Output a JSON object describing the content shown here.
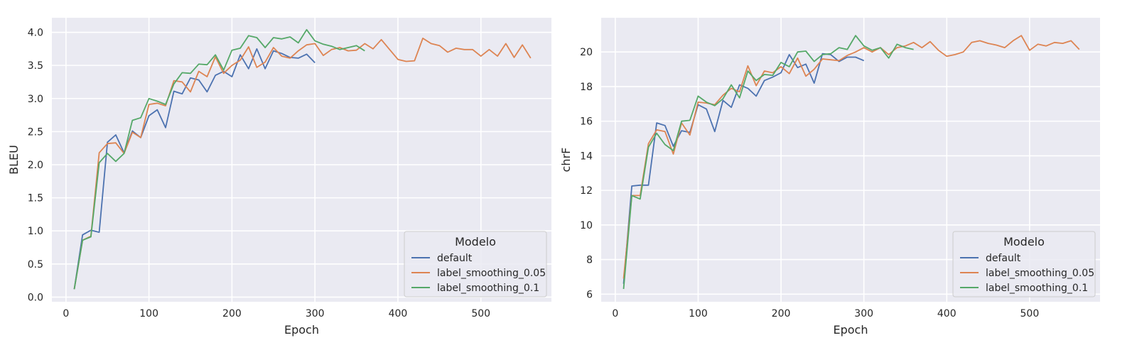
{
  "chart_data": [
    {
      "type": "line",
      "xlabel": "Epoch",
      "ylabel": "BLEU",
      "xlim": [
        -17,
        585
      ],
      "ylim": [
        -0.07,
        4.22
      ],
      "xticks": [
        0,
        100,
        200,
        300,
        400,
        500
      ],
      "yticks": [
        0.0,
        0.5,
        1.0,
        1.5,
        2.0,
        2.5,
        3.0,
        3.5,
        4.0
      ],
      "ytick_labels": [
        "0.0",
        "0.5",
        "1.0",
        "1.5",
        "2.0",
        "2.5",
        "3.0",
        "3.5",
        "4.0"
      ],
      "grid": true,
      "legend": {
        "title": "Modelo",
        "placement": "lower-right"
      },
      "series": [
        {
          "name": "default",
          "color": "#4c72b0",
          "x": [
            10,
            20,
            30,
            40,
            50,
            60,
            70,
            80,
            90,
            100,
            110,
            120,
            130,
            140,
            150,
            160,
            170,
            180,
            190,
            200,
            210,
            220,
            230,
            240,
            250,
            260,
            270,
            280,
            290,
            300
          ],
          "y": [
            0.12,
            0.94,
            1.01,
            0.98,
            2.34,
            2.45,
            2.18,
            2.51,
            2.41,
            2.74,
            2.83,
            2.56,
            3.11,
            3.07,
            3.31,
            3.28,
            3.1,
            3.35,
            3.41,
            3.33,
            3.66,
            3.45,
            3.75,
            3.45,
            3.72,
            3.68,
            3.62,
            3.61,
            3.67,
            3.54
          ]
        },
        {
          "name": "label_smoothing_0.05",
          "color": "#dd8452",
          "x": [
            10,
            20,
            30,
            40,
            50,
            60,
            70,
            80,
            90,
            100,
            110,
            120,
            130,
            140,
            150,
            160,
            170,
            180,
            190,
            200,
            210,
            220,
            230,
            240,
            250,
            260,
            270,
            280,
            290,
            300,
            310,
            320,
            330,
            340,
            350,
            360,
            370,
            380,
            390,
            400,
            410,
            420,
            430,
            440,
            450,
            460,
            470,
            480,
            490,
            500,
            510,
            520,
            530,
            540,
            550,
            560
          ],
          "y": [
            0.12,
            0.86,
            0.92,
            2.18,
            2.32,
            2.33,
            2.17,
            2.49,
            2.41,
            2.91,
            2.93,
            2.89,
            3.27,
            3.25,
            3.1,
            3.41,
            3.33,
            3.63,
            3.38,
            3.5,
            3.58,
            3.78,
            3.47,
            3.55,
            3.77,
            3.64,
            3.61,
            3.72,
            3.81,
            3.83,
            3.65,
            3.74,
            3.77,
            3.72,
            3.73,
            3.83,
            3.75,
            3.89,
            3.74,
            3.59,
            3.56,
            3.57,
            3.91,
            3.83,
            3.8,
            3.7,
            3.76,
            3.74,
            3.74,
            3.64,
            3.74,
            3.64,
            3.83,
            3.62,
            3.81,
            3.61
          ]
        },
        {
          "name": "label_smoothing_0.1",
          "color": "#55a868",
          "x": [
            10,
            20,
            30,
            40,
            50,
            60,
            70,
            80,
            90,
            100,
            110,
            120,
            130,
            140,
            150,
            160,
            170,
            180,
            190,
            200,
            210,
            220,
            230,
            240,
            250,
            260,
            270,
            280,
            290,
            300,
            310,
            320,
            330,
            340,
            350,
            360
          ],
          "y": [
            0.12,
            0.86,
            0.91,
            2.03,
            2.17,
            2.05,
            2.17,
            2.67,
            2.71,
            3.0,
            2.96,
            2.91,
            3.22,
            3.39,
            3.38,
            3.52,
            3.51,
            3.66,
            3.43,
            3.73,
            3.76,
            3.95,
            3.92,
            3.77,
            3.92,
            3.9,
            3.93,
            3.84,
            4.04,
            3.87,
            3.82,
            3.79,
            3.74,
            3.77,
            3.8,
            3.72
          ]
        }
      ]
    },
    {
      "type": "line",
      "xlabel": "Epoch",
      "ylabel": "chrF",
      "xlim": [
        -17,
        585
      ],
      "ylim": [
        5.56,
        21.98
      ],
      "xticks": [
        0,
        100,
        200,
        300,
        400,
        500
      ],
      "yticks": [
        6,
        8,
        10,
        12,
        14,
        16,
        18,
        20
      ],
      "ytick_labels": [
        "6",
        "8",
        "10",
        "12",
        "14",
        "16",
        "18",
        "20"
      ],
      "grid": true,
      "legend": {
        "title": "Modelo",
        "placement": "lower-right"
      },
      "series": [
        {
          "name": "default",
          "color": "#4c72b0",
          "x": [
            10,
            20,
            30,
            40,
            50,
            60,
            70,
            80,
            90,
            100,
            110,
            120,
            130,
            140,
            150,
            160,
            170,
            180,
            190,
            200,
            210,
            220,
            230,
            240,
            250,
            260,
            270,
            280,
            290,
            300
          ],
          "y": [
            6.6,
            12.25,
            12.3,
            12.3,
            15.9,
            15.75,
            14.55,
            15.45,
            15.35,
            16.95,
            16.7,
            15.4,
            17.2,
            16.8,
            18.1,
            17.9,
            17.45,
            18.35,
            18.55,
            18.8,
            19.85,
            19.1,
            19.3,
            18.2,
            19.9,
            19.85,
            19.45,
            19.7,
            19.7,
            19.5
          ]
        },
        {
          "name": "label_smoothing_0.05",
          "color": "#dd8452",
          "x": [
            10,
            20,
            30,
            40,
            50,
            60,
            70,
            80,
            90,
            100,
            110,
            120,
            130,
            140,
            150,
            160,
            170,
            180,
            190,
            200,
            210,
            220,
            230,
            240,
            250,
            260,
            270,
            280,
            290,
            300,
            310,
            320,
            330,
            340,
            350,
            360,
            370,
            380,
            390,
            400,
            410,
            420,
            430,
            440,
            450,
            460,
            470,
            480,
            490,
            500,
            510,
            520,
            530,
            540,
            550,
            560
          ],
          "y": [
            6.9,
            11.7,
            11.7,
            14.7,
            15.5,
            15.4,
            14.1,
            15.9,
            15.2,
            17.1,
            17.05,
            16.95,
            17.5,
            17.9,
            17.7,
            19.2,
            18.05,
            18.9,
            18.8,
            19.15,
            18.75,
            19.65,
            18.6,
            19.0,
            19.6,
            19.55,
            19.5,
            19.8,
            20.0,
            20.25,
            20.0,
            20.25,
            19.85,
            20.25,
            20.35,
            20.55,
            20.25,
            20.6,
            20.1,
            19.75,
            19.85,
            20.0,
            20.55,
            20.65,
            20.5,
            20.4,
            20.25,
            20.65,
            20.95,
            20.1,
            20.45,
            20.35,
            20.55,
            20.5,
            20.65,
            20.15
          ]
        },
        {
          "name": "label_smoothing_0.1",
          "color": "#55a868",
          "x": [
            10,
            20,
            30,
            40,
            50,
            60,
            70,
            80,
            90,
            100,
            110,
            120,
            130,
            140,
            150,
            160,
            170,
            180,
            190,
            200,
            210,
            220,
            230,
            240,
            250,
            260,
            270,
            280,
            290,
            300,
            310,
            320,
            330,
            340,
            350,
            360
          ],
          "y": [
            6.3,
            11.7,
            11.5,
            14.5,
            15.3,
            14.65,
            14.3,
            16.0,
            16.05,
            17.45,
            17.1,
            16.9,
            17.3,
            18.1,
            17.35,
            18.9,
            18.35,
            18.7,
            18.65,
            19.4,
            19.15,
            20.0,
            20.05,
            19.45,
            19.85,
            19.9,
            20.25,
            20.15,
            20.95,
            20.35,
            20.1,
            20.25,
            19.65,
            20.45,
            20.25,
            20.15
          ]
        }
      ]
    }
  ]
}
